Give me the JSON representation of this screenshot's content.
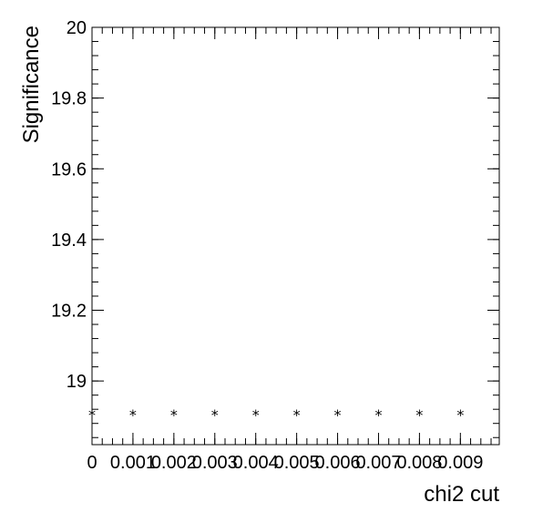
{
  "chart_data": {
    "type": "scatter",
    "xlabel": "chi2 cut",
    "ylabel": "Significance",
    "xlim": [
      0,
      0.00995
    ],
    "ylim": [
      18.82,
      20.0
    ],
    "x_major_ticks": [
      0,
      0.001,
      0.002,
      0.003,
      0.004,
      0.005,
      0.006,
      0.007,
      0.008,
      0.009
    ],
    "x_tick_labels": [
      "0",
      "0.001",
      "0.002",
      "0.003",
      "0.004",
      "0.005",
      "0.006",
      "0.007",
      "0.008",
      "0.009"
    ],
    "y_major_ticks": [
      19.0,
      19.2,
      19.4,
      19.6,
      19.8,
      20.0
    ],
    "y_tick_labels": [
      "19",
      "19.2",
      "19.4",
      "19.6",
      "19.8",
      "20"
    ],
    "x_minor_step": 0.00025,
    "y_minor_step": 0.04,
    "marker": "*",
    "grid": false,
    "x": [
      0,
      0.001,
      0.002,
      0.003,
      0.004,
      0.005,
      0.006,
      0.007,
      0.008,
      0.009
    ],
    "y": [
      18.905,
      18.905,
      18.905,
      18.905,
      18.905,
      18.905,
      18.905,
      18.905,
      18.905,
      18.905
    ]
  }
}
